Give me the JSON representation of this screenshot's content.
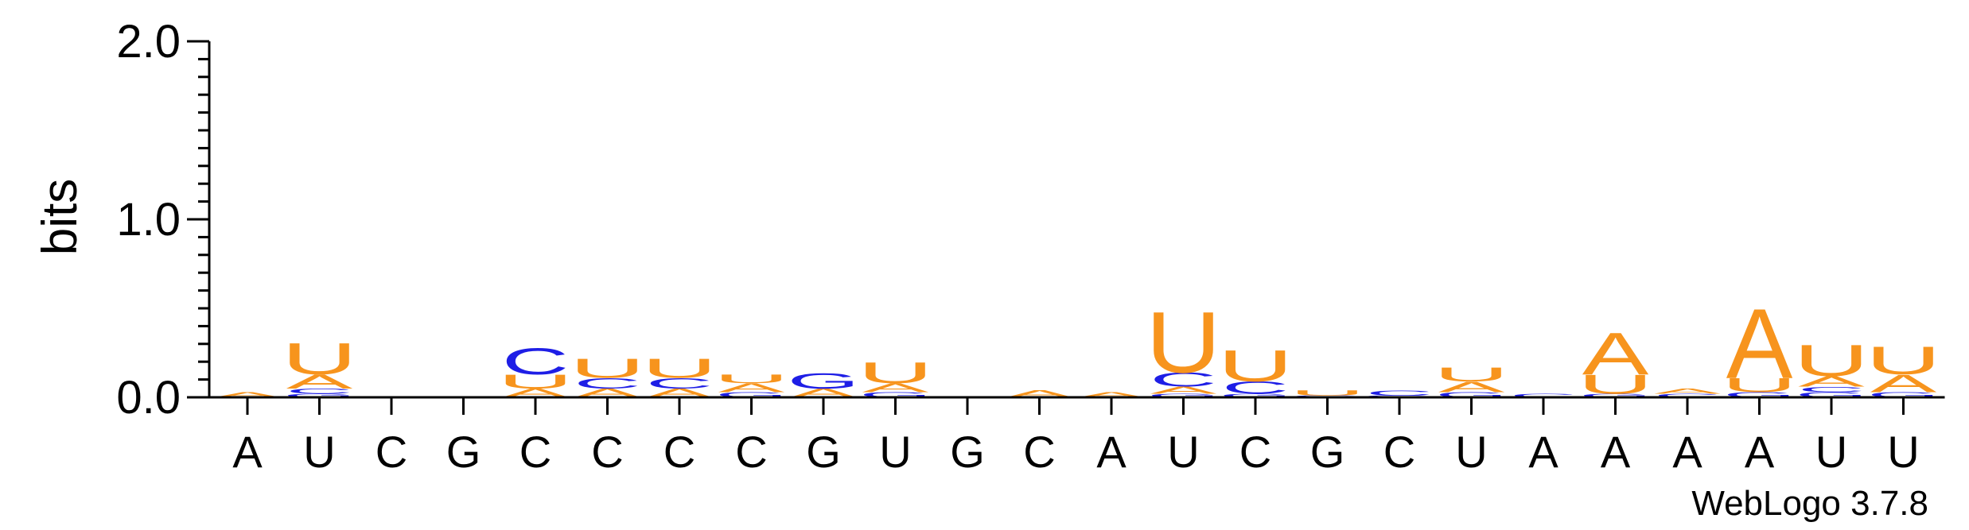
{
  "colors": {
    "A": "#f7941d",
    "U": "#f7941d",
    "C": "#1e1ee6",
    "G": "#1e1ee6",
    "axis": "#000000",
    "text": "#000000"
  },
  "footer": {
    "credit": "WebLogo 3.7.8"
  },
  "chart_data": {
    "type": "sequence-logo",
    "ylabel": "bits",
    "ylim": [
      0,
      2.0
    ],
    "yticks": [
      "0.0",
      "1.0",
      "2.0"
    ],
    "positions": [
      "A",
      "U",
      "C",
      "G",
      "C",
      "C",
      "C",
      "C",
      "G",
      "U",
      "G",
      "C",
      "A",
      "U",
      "C",
      "G",
      "C",
      "U",
      "A",
      "A",
      "A",
      "A",
      "U",
      "U"
    ],
    "stacks": [
      [
        {
          "l": "A",
          "h": 0.03
        }
      ],
      [
        {
          "l": "G",
          "h": 0.02
        },
        {
          "l": "C",
          "h": 0.03
        },
        {
          "l": "A",
          "h": 0.08
        },
        {
          "l": "U",
          "h": 0.18
        }
      ],
      [],
      [],
      [
        {
          "l": "A",
          "h": 0.05
        },
        {
          "l": "U",
          "h": 0.08
        },
        {
          "l": "C",
          "h": 0.15
        }
      ],
      [
        {
          "l": "A",
          "h": 0.05
        },
        {
          "l": "C",
          "h": 0.06
        },
        {
          "l": "U",
          "h": 0.11
        }
      ],
      [
        {
          "l": "A",
          "h": 0.05
        },
        {
          "l": "C",
          "h": 0.06
        },
        {
          "l": "U",
          "h": 0.11
        }
      ],
      [
        {
          "l": "G",
          "h": 0.03
        },
        {
          "l": "A",
          "h": 0.05
        },
        {
          "l": "U",
          "h": 0.05
        }
      ],
      [
        {
          "l": "A",
          "h": 0.05
        },
        {
          "l": "G",
          "h": 0.09
        }
      ],
      [
        {
          "l": "G",
          "h": 0.03
        },
        {
          "l": "A",
          "h": 0.05
        },
        {
          "l": "U",
          "h": 0.12
        }
      ],
      [],
      [
        {
          "l": "A",
          "h": 0.04
        }
      ],
      [
        {
          "l": "A",
          "h": 0.03
        }
      ],
      [
        {
          "l": "G",
          "h": 0.02
        },
        {
          "l": "A",
          "h": 0.04
        },
        {
          "l": "C",
          "h": 0.08
        },
        {
          "l": "U",
          "h": 0.35
        }
      ],
      [
        {
          "l": "G",
          "h": 0.02
        },
        {
          "l": "C",
          "h": 0.07
        },
        {
          "l": "U",
          "h": 0.18
        }
      ],
      [
        {
          "l": "G",
          "h": 0.01
        },
        {
          "l": "U",
          "h": 0.03
        }
      ],
      [
        {
          "l": "G",
          "h": 0.01
        },
        {
          "l": "C",
          "h": 0.03
        }
      ],
      [
        {
          "l": "G",
          "h": 0.03
        },
        {
          "l": "A",
          "h": 0.06
        },
        {
          "l": "U",
          "h": 0.08
        }
      ],
      [
        {
          "l": "C",
          "h": 0.02
        }
      ],
      [
        {
          "l": "G",
          "h": 0.02
        },
        {
          "l": "U",
          "h": 0.11
        },
        {
          "l": "A",
          "h": 0.24
        }
      ],
      [
        {
          "l": "C",
          "h": 0.02
        },
        {
          "l": "A",
          "h": 0.03
        }
      ],
      [
        {
          "l": "G",
          "h": 0.03
        },
        {
          "l": "U",
          "h": 0.08
        },
        {
          "l": "A",
          "h": 0.4
        }
      ],
      [
        {
          "l": "G",
          "h": 0.03
        },
        {
          "l": "C",
          "h": 0.03
        },
        {
          "l": "A",
          "h": 0.06
        },
        {
          "l": "U",
          "h": 0.18
        }
      ],
      [
        {
          "l": "G",
          "h": 0.03
        },
        {
          "l": "A",
          "h": 0.1
        },
        {
          "l": "U",
          "h": 0.16
        }
      ]
    ]
  }
}
